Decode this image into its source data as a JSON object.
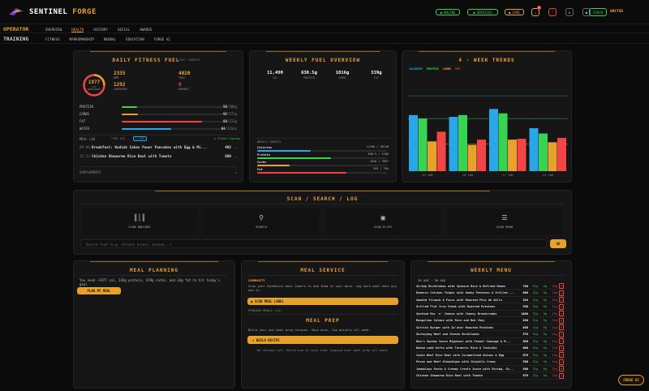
{
  "app": {
    "name_a": "SENTINEL",
    "name_b": "FORGE"
  },
  "header": {
    "pills": [
      {
        "label": "ONLINE",
        "color": "#39d353"
      },
      {
        "label": "SERVICES",
        "color": "#39d353"
      },
      {
        "label": "SYNC",
        "color": "#e8a12a"
      }
    ],
    "notif_count": "4",
    "coach": "COACH",
    "user": "ARCTOS"
  },
  "nav": {
    "row1_label": "OPERATOR",
    "row1": [
      "OVERVIEW",
      "HEALTH",
      "HISTORY",
      "SOCIAL",
      "AWARDS"
    ],
    "row2_label": "TRAINING",
    "row2": [
      "FITNESS",
      "MARKSMANSHIP",
      "NEURAL",
      "EDUCATION",
      "FORGE AI"
    ]
  },
  "fuel": {
    "title": "DAILY FITNESS FUEL",
    "edit": "EDIT TARGETS",
    "ring_val": "1977",
    "ring_sub1": "CAL",
    "ring_sub2": "REMAINING",
    "stats": [
      {
        "v": "2335",
        "l": "BMR",
        "c": "#f2a23a"
      },
      {
        "v": "4020",
        "l": "TDEE",
        "c": "#f2a23a"
      },
      {
        "v": "1292",
        "l": "CONSUMED",
        "c": "#f2a23a"
      },
      {
        "v": "0",
        "l": "BURNED",
        "c": "#f24545"
      }
    ],
    "macros": [
      {
        "n": "PROTEIN",
        "v": "59",
        "t": "/386g",
        "f": 0.15,
        "c": "#39d353"
      },
      {
        "n": "CARBS",
        "v": "92",
        "t": "/571g",
        "f": 0.16,
        "c": "#e8a12a"
      },
      {
        "n": "FAT",
        "v": "88",
        "t": "/112g",
        "f": 0.79,
        "c": "#f24545"
      },
      {
        "n": "WATER",
        "v": "64",
        "t": "/131oz",
        "f": 0.49,
        "c": "#2aa7e8"
      }
    ],
    "meal_log": "MEAL LOG",
    "meal_log_sub": "TIME AGO",
    "meal_log_btn": "+ LOG",
    "meals": [
      {
        "t": "09:06",
        "n": "Breakfast: Kodiak Cakes Power Pancakes with Egg & Mi...",
        "c": "492"
      },
      {
        "t": "15:13",
        "n": "Chicken Shawarma Rice Bowl with Tomato",
        "c": "800"
      }
    ],
    "supp": "SUPPLEMENTS",
    "synced": "Fitbit Synced"
  },
  "weekly": {
    "title": "WEEKLY FUEL OVERVIEW",
    "stats": [
      {
        "v": "11,490",
        "l": "CAL"
      },
      {
        "v": "630.5g",
        "l": "PROTEIN"
      },
      {
        "v": "1016g",
        "l": "CARBS"
      },
      {
        "v": "539g",
        "l": "FAT"
      }
    ],
    "targets_label": "WEEKLY TARGETS",
    "targets": [
      {
        "n": "Calories",
        "v": "11490 / 28140",
        "f": 0.41,
        "c": "#2aa7e8"
      },
      {
        "n": "Protein",
        "v": "630.5 / 1106",
        "f": 0.57,
        "c": "#39d353"
      },
      {
        "n": "Carbs",
        "v": "1016 / 3997",
        "f": 0.25,
        "c": "#e8a12a"
      },
      {
        "n": "Fat",
        "v": "539 / 784",
        "f": 0.69,
        "c": "#f24545"
      }
    ]
  },
  "trends": {
    "title": "4 - WEEK TRENDS",
    "legend": [
      {
        "n": "CALORIES",
        "c": "#2aa7e8"
      },
      {
        "n": "PROTEIN",
        "c": "#39d353"
      },
      {
        "n": "CARBS",
        "c": "#e8a12a"
      },
      {
        "n": "FAT",
        "c": "#f24545"
      }
    ]
  },
  "chart_data": {
    "type": "bar",
    "categories": [
      "03 JAN",
      "10 JAN",
      "17 JAN",
      "24 JAN"
    ],
    "series": [
      {
        "name": "CALORIES",
        "color": "#2aa7e8",
        "values": [
          0.64,
          0.62,
          0.71,
          0.49
        ]
      },
      {
        "name": "PROTEIN",
        "color": "#39d353",
        "values": [
          0.6,
          0.64,
          0.66,
          0.43
        ]
      },
      {
        "name": "CARBS",
        "color": "#e8a12a",
        "values": [
          0.34,
          0.3,
          0.36,
          0.33
        ]
      },
      {
        "name": "FAT",
        "color": "#f24545",
        "values": [
          0.45,
          0.36,
          0.37,
          0.38
        ]
      }
    ],
    "reflines": [
      0.86,
      0.6,
      0.31
    ]
  },
  "scan": {
    "title": "SCAN / SEARCH / LOG",
    "tiles": [
      {
        "label": "SCAN BARCODE",
        "icon": "barcode-icon"
      },
      {
        "label": "SEARCH",
        "icon": "search-icon"
      },
      {
        "label": "SCAN PLATE",
        "icon": "camera-icon"
      },
      {
        "label": "SCAN MENU",
        "icon": "menu-icon"
      }
    ],
    "placeholder": "Search food (e.g. chicken breast, banana...)",
    "go": "GO"
  },
  "planning": {
    "title": "MEAL PLANNING",
    "text": "You need ~1977 cal, 326g protein, 479g carbs, and 24g fat to hit today's goal",
    "btn": "PLAN MY MEAL"
  },
  "service": {
    "title": "MEAL SERVICE",
    "community": "COMMUNITY",
    "community_text": "Scan your CookUnity meal labels to add them to your menu. Log each meal when you eat it.",
    "scan_btn": "SCAN MEAL LABEL",
    "pending": "PENDING MEALS (14)",
    "prep_title": "MEAL PREP",
    "prep_text": "Build your own meal prep recipes. Save once, log quickly all week.",
    "prep_btn": "+ BUILD RECIPE",
    "prep_empty": "No recipes yet. Build one to save time logging your meal prep all week."
  },
  "menu": {
    "title": "WEEKLY MENU",
    "range": "26 AUG - 30 AUG",
    "items": [
      {
        "n": "Shrimp Enchiladas with Spinach Rice & Refried Beans",
        "c": "760",
        "p": "31g",
        "cb": "9g",
        "f": "33g"
      },
      {
        "n": "Romesco Chicken Thighs with Smoky Potatoes & Grilled ...",
        "c": "600",
        "p": "31g",
        "cb": "9g",
        "f": "23g"
      },
      {
        "n": "Smoked Tilapia & Fusco with Roasted Pico de Gallo",
        "c": "510",
        "p": "31g",
        "cb": "9g",
        "f": "21g"
      },
      {
        "n": "Grilled Flat Iron Steak with Roasted Potatoes",
        "c": "530",
        "p": "31g",
        "cb": "9g",
        "f": "21g"
      },
      {
        "n": "Seafood Mac 'n' Cheese with Cheesy Breadcrumbs",
        "c": "1080",
        "p": "31g",
        "cb": "9g",
        "f": "27g"
      },
      {
        "n": "Mongolian Salmon with Rice and Bok Choy",
        "c": "630",
        "p": "31g",
        "cb": "9g",
        "f": "21g"
      },
      {
        "n": "Sofrito Burger with Za'atar Roasted Potatoes",
        "c": "650",
        "p": "31g",
        "cb": "9g",
        "f": "21g"
      },
      {
        "n": "Gochujang Beef and Cheese Enchiladas",
        "c": "570",
        "p": "31g",
        "cb": "9g",
        "f": "21g"
      },
      {
        "n": "Mom's Sunday Sauce Rigatoni with Fennel Sausage & M...",
        "c": "650",
        "p": "31g",
        "cb": "9g",
        "f": "21g"
      },
      {
        "n": "Baked Lamb Kofta with Turmeric Rice & Tzatziki",
        "c": "600",
        "p": "31g",
        "cb": "9g",
        "f": "21g"
      },
      {
        "n": "Cumin Beef Rice Bowl with Caramelized Onions & Egg",
        "c": "670",
        "p": "31g",
        "cb": "9g",
        "f": "21g"
      },
      {
        "n": "Pecan and Beef Albondigas with Chipotle Cream",
        "c": "500",
        "p": "31g",
        "cb": "9g",
        "f": "21g"
      },
      {
        "n": "Jambalaya Pasta & Creamy Creole Sauce with Shrimp, Ch...",
        "c": "560",
        "p": "31g",
        "cb": "9g",
        "f": "21g"
      },
      {
        "n": "Chicken Shawarma Rice Bowl with Tomato",
        "c": "670",
        "p": "31g",
        "cb": "9g",
        "f": "21g"
      }
    ]
  },
  "forge_ai": "FORGE AI"
}
